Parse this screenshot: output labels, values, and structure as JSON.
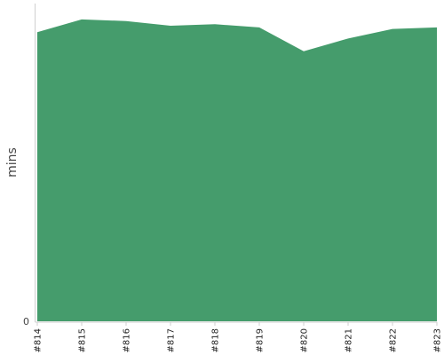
{
  "chart_data": {
    "type": "area",
    "x": [
      "#814",
      "#815",
      "#816",
      "#817",
      "#818",
      "#819",
      "#820",
      "#821",
      "#822",
      "#823"
    ],
    "series": [
      {
        "values": [
          91,
          95,
          94.5,
          93,
          93.5,
          92.5,
          85,
          89,
          92,
          92.5
        ],
        "color": "#459c6c"
      }
    ],
    "ylabel": "mins",
    "xlabel": "",
    "ylim": [
      0,
      100
    ],
    "y_ticks": [
      "0"
    ],
    "grid": false,
    "legend": "none",
    "x_tick_rotation": "vertical"
  }
}
